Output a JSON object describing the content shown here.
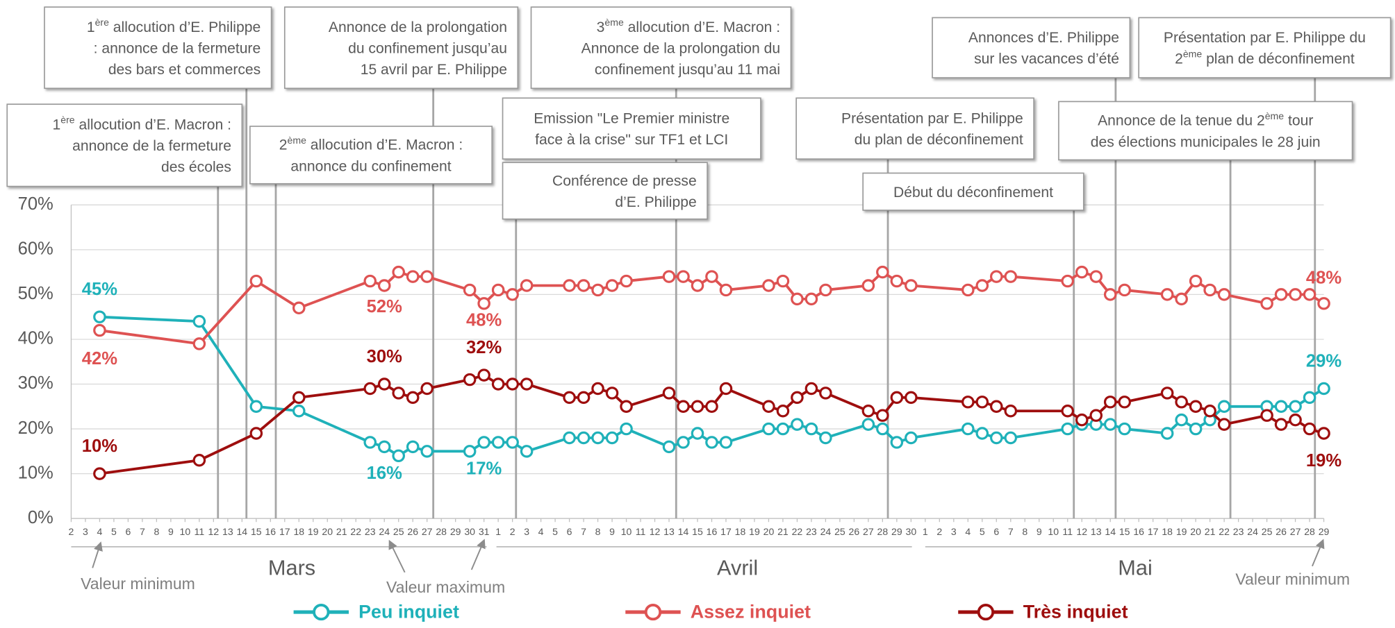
{
  "chart_data": {
    "type": "line",
    "yticks": [
      {
        "value": 0,
        "label": "0%"
      },
      {
        "value": 10,
        "label": "10%"
      },
      {
        "value": 20,
        "label": "20%"
      },
      {
        "value": 30,
        "label": "30%"
      },
      {
        "value": 40,
        "label": "40%"
      },
      {
        "value": 50,
        "label": "50%"
      },
      {
        "value": 60,
        "label": "60%"
      },
      {
        "value": 70,
        "label": "70%"
      }
    ],
    "ylim": [
      0,
      70
    ],
    "grid": true,
    "months": [
      "Mars",
      "Avril",
      "Mai"
    ],
    "xticks": [
      {
        "value": "03-02",
        "label": "2"
      },
      {
        "value": "03-03",
        "label": "3"
      },
      {
        "value": "03-04",
        "label": "4"
      },
      {
        "value": "03-05",
        "label": "5"
      },
      {
        "value": "03-06",
        "label": "6"
      },
      {
        "value": "03-07",
        "label": "7"
      },
      {
        "value": "03-08",
        "label": "8"
      },
      {
        "value": "03-09",
        "label": "9"
      },
      {
        "value": "03-10",
        "label": "10"
      },
      {
        "value": "03-11",
        "label": "11"
      },
      {
        "value": "03-12",
        "label": "12"
      },
      {
        "value": "03-13",
        "label": "13"
      },
      {
        "value": "03-14",
        "label": "14"
      },
      {
        "value": "03-15",
        "label": "15"
      },
      {
        "value": "03-16",
        "label": "16"
      },
      {
        "value": "03-17",
        "label": "17"
      },
      {
        "value": "03-18",
        "label": "18"
      },
      {
        "value": "03-19",
        "label": "19"
      },
      {
        "value": "03-20",
        "label": "20"
      },
      {
        "value": "03-21",
        "label": "21"
      },
      {
        "value": "03-22",
        "label": "22"
      },
      {
        "value": "03-23",
        "label": "23"
      },
      {
        "value": "03-24",
        "label": "24"
      },
      {
        "value": "03-25",
        "label": "25"
      },
      {
        "value": "03-26",
        "label": "26"
      },
      {
        "value": "03-27",
        "label": "27"
      },
      {
        "value": "03-28",
        "label": "28"
      },
      {
        "value": "03-29",
        "label": "29"
      },
      {
        "value": "03-30",
        "label": "30"
      },
      {
        "value": "03-31",
        "label": "31"
      },
      {
        "value": "04-01",
        "label": "1"
      },
      {
        "value": "04-02",
        "label": "2"
      },
      {
        "value": "04-03",
        "label": "3"
      },
      {
        "value": "04-04",
        "label": "4"
      },
      {
        "value": "04-05",
        "label": "5"
      },
      {
        "value": "04-06",
        "label": "6"
      },
      {
        "value": "04-07",
        "label": "7"
      },
      {
        "value": "04-08",
        "label": "8"
      },
      {
        "value": "04-09",
        "label": "9"
      },
      {
        "value": "04-10",
        "label": "10"
      },
      {
        "value": "04-11",
        "label": "11"
      },
      {
        "value": "04-12",
        "label": "12"
      },
      {
        "value": "04-13",
        "label": "13"
      },
      {
        "value": "04-14",
        "label": "14"
      },
      {
        "value": "04-15",
        "label": "15"
      },
      {
        "value": "04-16",
        "label": "16"
      },
      {
        "value": "04-17",
        "label": "17"
      },
      {
        "value": "04-18",
        "label": "18"
      },
      {
        "value": "04-19",
        "label": "19"
      },
      {
        "value": "04-20",
        "label": "20"
      },
      {
        "value": "04-21",
        "label": "21"
      },
      {
        "value": "04-22",
        "label": "22"
      },
      {
        "value": "04-23",
        "label": "23"
      },
      {
        "value": "04-24",
        "label": "24"
      },
      {
        "value": "04-25",
        "label": "25"
      },
      {
        "value": "04-26",
        "label": "26"
      },
      {
        "value": "04-27",
        "label": "27"
      },
      {
        "value": "04-28",
        "label": "28"
      },
      {
        "value": "04-29",
        "label": "29"
      },
      {
        "value": "04-30",
        "label": "30"
      },
      {
        "value": "05-01",
        "label": "1"
      },
      {
        "value": "05-02",
        "label": "2"
      },
      {
        "value": "05-03",
        "label": "3"
      },
      {
        "value": "05-04",
        "label": "4"
      },
      {
        "value": "05-05",
        "label": "5"
      },
      {
        "value": "05-06",
        "label": "6"
      },
      {
        "value": "05-07",
        "label": "7"
      },
      {
        "value": "05-08",
        "label": "8"
      },
      {
        "value": "05-09",
        "label": "9"
      },
      {
        "value": "05-10",
        "label": "10"
      },
      {
        "value": "05-11",
        "label": "11"
      },
      {
        "value": "05-12",
        "label": "12"
      },
      {
        "value": "05-13",
        "label": "13"
      },
      {
        "value": "05-14",
        "label": "14"
      },
      {
        "value": "05-15",
        "label": "15"
      },
      {
        "value": "05-16",
        "label": "16"
      },
      {
        "value": "05-17",
        "label": "17"
      },
      {
        "value": "05-18",
        "label": "18"
      },
      {
        "value": "05-19",
        "label": "19"
      },
      {
        "value": "05-20",
        "label": "20"
      },
      {
        "value": "05-21",
        "label": "21"
      },
      {
        "value": "05-22",
        "label": "22"
      },
      {
        "value": "05-23",
        "label": "23"
      },
      {
        "value": "05-24",
        "label": "24"
      },
      {
        "value": "05-25",
        "label": "25"
      },
      {
        "value": "05-26",
        "label": "26"
      },
      {
        "value": "05-27",
        "label": "27"
      },
      {
        "value": "05-28",
        "label": "28"
      },
      {
        "value": "05-29",
        "label": "29"
      }
    ],
    "x": [
      "03-04",
      "03-11",
      "03-15",
      "03-18",
      "03-23",
      "03-24",
      "03-25",
      "03-26",
      "03-27",
      "03-30",
      "03-31",
      "04-01",
      "04-02",
      "04-03",
      "04-06",
      "04-07",
      "04-08",
      "04-09",
      "04-10",
      "04-13",
      "04-14",
      "04-15",
      "04-16",
      "04-17",
      "04-20",
      "04-21",
      "04-22",
      "04-23",
      "04-24",
      "04-27",
      "04-28",
      "04-29",
      "04-30",
      "05-04",
      "05-05",
      "05-06",
      "05-07",
      "05-11",
      "05-12",
      "05-13",
      "05-14",
      "05-15",
      "05-18",
      "05-19",
      "05-20",
      "05-21",
      "05-22",
      "05-25",
      "05-26",
      "05-27",
      "05-28",
      "05-29"
    ],
    "series": [
      {
        "name": "Peu inquiet",
        "color": "#1fb1b9",
        "values": [
          45,
          44,
          25,
          24,
          17,
          16,
          14,
          16,
          15,
          15,
          17,
          17,
          17,
          15,
          18,
          18,
          18,
          18,
          20,
          16,
          17,
          19,
          17,
          17,
          20,
          20,
          21,
          20,
          18,
          21,
          20,
          17,
          18,
          20,
          19,
          18,
          18,
          20,
          21,
          21,
          21,
          20,
          19,
          22,
          20,
          22,
          25,
          25,
          25,
          25,
          27,
          29
        ],
        "value_labels": [
          "45%",
          null,
          null,
          null,
          null,
          "16%",
          null,
          null,
          null,
          null,
          "17%",
          null,
          null,
          null,
          null,
          null,
          null,
          null,
          null,
          null,
          null,
          null,
          null,
          null,
          null,
          null,
          null,
          null,
          null,
          null,
          null,
          null,
          null,
          null,
          null,
          null,
          null,
          null,
          null,
          null,
          null,
          null,
          null,
          null,
          null,
          null,
          null,
          null,
          null,
          null,
          null,
          "29%"
        ]
      },
      {
        "name": "Assez inquiet",
        "color": "#de5252",
        "values": [
          42,
          39,
          53,
          47,
          53,
          52,
          55,
          54,
          54,
          51,
          48,
          51,
          50,
          52,
          52,
          52,
          51,
          52,
          53,
          54,
          54,
          52,
          54,
          51,
          52,
          53,
          49,
          49,
          51,
          52,
          55,
          53,
          52,
          51,
          52,
          54,
          54,
          53,
          55,
          54,
          50,
          51,
          50,
          49,
          53,
          51,
          50,
          48,
          50,
          50,
          50,
          48
        ],
        "value_labels": [
          "42%",
          null,
          null,
          null,
          null,
          "52%",
          null,
          null,
          null,
          null,
          "48%",
          null,
          null,
          null,
          null,
          null,
          null,
          null,
          null,
          null,
          null,
          null,
          null,
          null,
          null,
          null,
          null,
          null,
          null,
          null,
          null,
          null,
          null,
          null,
          null,
          null,
          null,
          null,
          null,
          null,
          null,
          null,
          null,
          null,
          null,
          null,
          null,
          null,
          null,
          null,
          null,
          "48%"
        ]
      },
      {
        "name": "Très inquiet",
        "color": "#9e0e0e",
        "values": [
          10,
          13,
          19,
          27,
          29,
          30,
          28,
          27,
          29,
          31,
          32,
          30,
          30,
          30,
          27,
          27,
          29,
          28,
          25,
          28,
          25,
          25,
          25,
          29,
          25,
          24,
          27,
          29,
          28,
          24,
          23,
          27,
          27,
          26,
          26,
          25,
          24,
          24,
          22,
          23,
          26,
          26,
          28,
          26,
          25,
          24,
          21,
          23,
          21,
          22,
          20,
          19
        ],
        "value_labels": [
          "10%",
          null,
          null,
          null,
          null,
          "30%",
          null,
          null,
          null,
          null,
          "32%",
          null,
          null,
          null,
          null,
          null,
          null,
          null,
          null,
          null,
          null,
          null,
          null,
          null,
          null,
          null,
          null,
          null,
          null,
          null,
          null,
          null,
          null,
          null,
          null,
          null,
          null,
          null,
          null,
          null,
          null,
          null,
          null,
          null,
          null,
          null,
          null,
          null,
          null,
          null,
          null,
          "19%"
        ]
      }
    ],
    "annotations": [
      {
        "lines": [
          [
            "1",
            "ère",
            " allocution d’E. Macron :"
          ],
          [
            "annonce de la fermeture"
          ],
          [
            "des écoles"
          ]
        ]
      },
      {
        "lines": [
          [
            "1",
            "ère",
            " allocution d’E. Philippe"
          ],
          [
            ": annonce de la fermeture"
          ],
          [
            "des bars et commerces"
          ]
        ]
      },
      {
        "lines": [
          [
            "2",
            "ème",
            " allocution d’E. Macron :"
          ],
          [
            "annonce du confinement"
          ]
        ]
      },
      {
        "lines": [
          [
            "Annonce de la prolongation"
          ],
          [
            "du confinement jusqu’au"
          ],
          [
            "15 avril par E. Philippe"
          ]
        ]
      },
      {
        "lines": [
          [
            "3",
            "ème",
            " allocution d’E. Macron :"
          ],
          [
            "Annonce de la prolongation du"
          ],
          [
            "confinement jusqu’au 11 mai"
          ]
        ]
      },
      {
        "lines": [
          [
            "Emission \"Le Premier ministre"
          ],
          [
            "face à la crise\" sur TF1 et LCI"
          ]
        ]
      },
      {
        "lines": [
          [
            "Conférence de presse"
          ],
          [
            "d’E. Philippe"
          ]
        ]
      },
      {
        "lines": [
          [
            "Présentation par E. Philippe"
          ],
          [
            "du plan de déconfinement"
          ]
        ]
      },
      {
        "lines": [
          [
            "Début du déconfinement"
          ]
        ]
      },
      {
        "lines": [
          [
            "Annonces d’E. Philippe"
          ],
          [
            "sur les vacances d’été"
          ]
        ]
      },
      {
        "lines": [
          [
            "Présentation par E. Philippe du"
          ],
          [
            "2",
            "ème",
            " plan de déconfinement"
          ]
        ]
      },
      {
        "lines": [
          [
            "Annonce de la tenue du 2",
            "ème",
            " tour"
          ],
          [
            "des élections municipales le 28 juin"
          ]
        ]
      }
    ],
    "notes": [
      "Valeur minimum",
      "Valeur maximum",
      "Valeur minimum"
    ]
  }
}
